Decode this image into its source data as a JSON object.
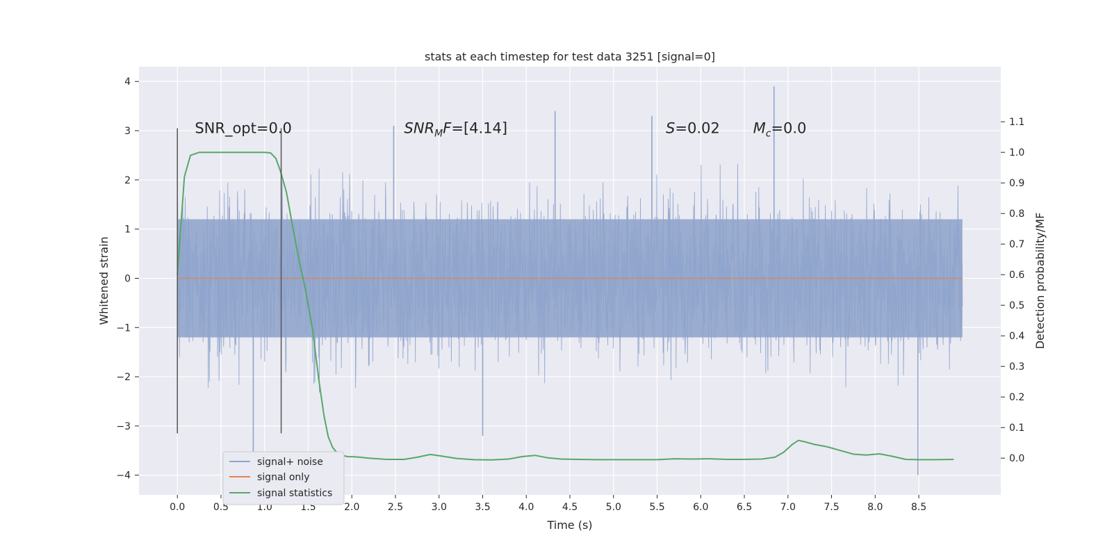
{
  "chart_data": {
    "type": "line",
    "title": "stats at each timestep for test data 3251 [signal=0]",
    "xlabel": "Time (s)",
    "ylabel": "Whitened strain",
    "y2label": "Detection probability/MF",
    "xlim": [
      -0.44,
      9.44
    ],
    "ylim": [
      -4.4,
      4.3
    ],
    "y2lim": [
      -0.12,
      1.28
    ],
    "xticks": [
      0.0,
      0.5,
      1.0,
      1.5,
      2.0,
      2.5,
      3.0,
      3.5,
      4.0,
      4.5,
      5.0,
      5.5,
      6.0,
      6.5,
      7.0,
      7.5,
      8.0,
      8.5
    ],
    "xtick_labels": [
      "0.0",
      "0.5",
      "1.0",
      "1.5",
      "2.0",
      "2.5",
      "3.0",
      "3.5",
      "4.0",
      "4.5",
      "5.0",
      "5.5",
      "6.0",
      "6.5",
      "7.0",
      "7.5",
      "8.0",
      "8.5"
    ],
    "yticks": [
      4,
      3,
      2,
      1,
      0,
      -1,
      -2,
      -3,
      -4
    ],
    "ytick_labels": [
      "4",
      "3",
      "2",
      "1",
      "0",
      "−1",
      "−2",
      "−3",
      "−4"
    ],
    "y2ticks": [
      1.1,
      1.0,
      0.9,
      0.8,
      0.7,
      0.6,
      0.5,
      0.4,
      0.3,
      0.2,
      0.1,
      0.0
    ],
    "y2tick_labels": [
      "1.1",
      "1.0",
      "0.9",
      "0.8",
      "0.7",
      "0.6",
      "0.5",
      "0.4",
      "0.3",
      "0.2",
      "0.1",
      "0.0"
    ],
    "noise": {
      "t_start": 0.0,
      "t_end": 9.0,
      "core_max": 1.2,
      "core_min": -1.2,
      "notable_peaks": [
        {
          "t": 2.48,
          "v": 3.1
        },
        {
          "t": 4.33,
          "v": 3.4
        },
        {
          "t": 5.44,
          "v": 3.3
        },
        {
          "t": 6.84,
          "v": 3.9
        },
        {
          "t": 0.87,
          "v": -3.6
        },
        {
          "t": 3.5,
          "v": -3.2
        },
        {
          "t": 8.49,
          "v": -4.0
        }
      ]
    },
    "vlines": [
      {
        "t": 0.0,
        "ymin": -3.15,
        "ymax": 3.05
      },
      {
        "t": 1.19,
        "ymin": -3.15,
        "ymax": 3.05
      }
    ],
    "series": [
      {
        "name": "signal+ noise",
        "color": "#8fa4cc"
      },
      {
        "name": "signal only",
        "color": "#dd8452",
        "t": [
          0.0,
          9.0
        ],
        "values": [
          0.0,
          0.0
        ]
      },
      {
        "name": "signal statistics",
        "color": "#55a868",
        "t": [
          0.0,
          0.08,
          0.15,
          0.25,
          0.35,
          0.5,
          0.7,
          0.9,
          1.0,
          1.07,
          1.13,
          1.18,
          1.25,
          1.32,
          1.4,
          1.47,
          1.55,
          1.62,
          1.68,
          1.73,
          1.78,
          1.83,
          1.88,
          1.95,
          2.05,
          2.2,
          2.4,
          2.6,
          2.75,
          2.9,
          3.05,
          3.2,
          3.4,
          3.6,
          3.8,
          3.95,
          4.1,
          4.25,
          4.4,
          4.6,
          4.8,
          5.0,
          5.3,
          5.5,
          5.7,
          5.9,
          6.1,
          6.3,
          6.5,
          6.7,
          6.85,
          6.95,
          7.05,
          7.12,
          7.2,
          7.3,
          7.45,
          7.6,
          7.75,
          7.9,
          8.05,
          8.2,
          8.35,
          8.5,
          8.7,
          8.9
        ],
        "values": [
          0.6,
          0.92,
          0.99,
          1.0,
          1.0,
          1.0,
          1.0,
          1.0,
          1.0,
          0.998,
          0.98,
          0.94,
          0.87,
          0.76,
          0.64,
          0.55,
          0.42,
          0.26,
          0.14,
          0.07,
          0.035,
          0.018,
          0.01,
          0.005,
          0.004,
          0.0,
          -0.004,
          -0.004,
          0.003,
          0.012,
          0.006,
          -0.001,
          -0.005,
          -0.006,
          -0.003,
          0.005,
          0.009,
          0.001,
          -0.003,
          -0.004,
          -0.005,
          -0.005,
          -0.005,
          -0.005,
          -0.002,
          -0.003,
          -0.002,
          -0.004,
          -0.004,
          -0.003,
          0.003,
          0.019,
          0.045,
          0.058,
          0.053,
          0.045,
          0.037,
          0.025,
          0.013,
          0.01,
          0.014,
          0.006,
          -0.004,
          -0.005,
          -0.005,
          -0.004
        ]
      }
    ],
    "annotations": [
      {
        "name": "snr-opt",
        "t": 0.2,
        "v": 3.05,
        "prefix": "SNR_opt",
        "sub": "",
        "value": "=0.0",
        "italic": false
      },
      {
        "name": "snr-mf",
        "t": 2.6,
        "v": 3.05,
        "prefix": "SNR",
        "sub": "M",
        "suffix": "F",
        "value": "=[4.14]",
        "italic": true
      },
      {
        "name": "s-value",
        "t": 5.6,
        "v": 3.05,
        "prefix": "S",
        "sub": "",
        "value": "=0.02",
        "italic": true
      },
      {
        "name": "mc-value",
        "t": 6.6,
        "v": 3.05,
        "prefix": "M",
        "sub": "c",
        "value": "=0.0",
        "italic": true
      }
    ],
    "legend": {
      "placement": "lower-left",
      "entries": [
        "signal+ noise",
        "signal only",
        "signal statistics"
      ]
    }
  }
}
